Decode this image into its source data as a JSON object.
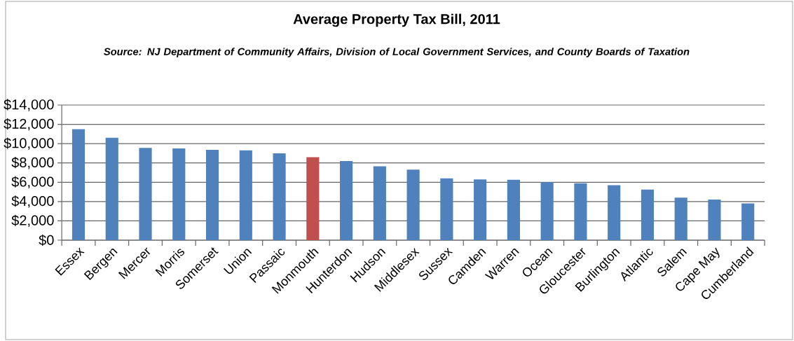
{
  "chart_data": {
    "type": "bar",
    "title": "Average Property Tax Bill, 2011",
    "subtitle": "Source: NJ Department of Community Affairs, Division of Local Government Services, and County Boards of Taxation",
    "categories": [
      "Essex",
      "Bergen",
      "Mercer",
      "Morris",
      "Somerset",
      "Union",
      "Passaic",
      "Monmouth",
      "Hunterdon",
      "Hudson",
      "Middlesex",
      "Sussex",
      "Camden",
      "Warren",
      "Ocean",
      "Gloucester",
      "Burlington",
      "Atlantic",
      "Salem",
      "Cape May",
      "Cumberland"
    ],
    "values": [
      11500,
      10600,
      9550,
      9500,
      9350,
      9300,
      9000,
      8600,
      8200,
      7650,
      7300,
      6400,
      6300,
      6250,
      6000,
      5900,
      5700,
      5250,
      4400,
      4200,
      3800
    ],
    "colors": [
      "#4f81bd",
      "#4f81bd",
      "#4f81bd",
      "#4f81bd",
      "#4f81bd",
      "#4f81bd",
      "#4f81bd",
      "#c0504d",
      "#4f81bd",
      "#4f81bd",
      "#4f81bd",
      "#4f81bd",
      "#4f81bd",
      "#4f81bd",
      "#4f81bd",
      "#4f81bd",
      "#4f81bd",
      "#4f81bd",
      "#4f81bd",
      "#4f81bd",
      "#4f81bd"
    ],
    "ylim": [
      0,
      14000
    ],
    "yticks": [
      {
        "value": 0,
        "label": "$0"
      },
      {
        "value": 2000,
        "label": "$2,000"
      },
      {
        "value": 4000,
        "label": "$4,000"
      },
      {
        "value": 6000,
        "label": "$6,000"
      },
      {
        "value": 8000,
        "label": "$8,000"
      },
      {
        "value": 10000,
        "label": "$10,000"
      },
      {
        "value": 12000,
        "label": "$12,000"
      },
      {
        "value": 14000,
        "label": "$14,000"
      }
    ],
    "grid": "y"
  }
}
